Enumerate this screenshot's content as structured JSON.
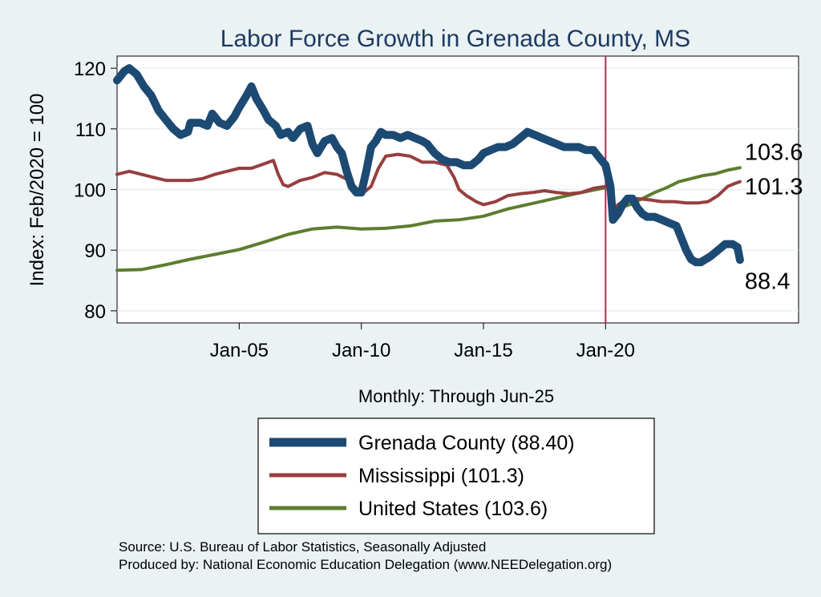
{
  "chart_data": {
    "type": "line",
    "title": "Labor Force Growth in Grenada  County, MS",
    "ylabel": "Index: Feb/2020 = 100",
    "xlabel": "Monthly: Through Jun-25",
    "ylim": [
      78,
      122
    ],
    "yticks": [
      80,
      90,
      100,
      110,
      120
    ],
    "xlim": [
      2000.0,
      2027.9
    ],
    "xticks": [
      {
        "x": 2005.0,
        "label": "Jan-05"
      },
      {
        "x": 2010.0,
        "label": "Jan-10"
      },
      {
        "x": 2015.0,
        "label": "Jan-15"
      },
      {
        "x": 2020.0,
        "label": "Jan-20"
      }
    ],
    "vline": {
      "x": 2020.0,
      "color": "#c0264a"
    },
    "series": [
      {
        "name": "Grenada County",
        "legend": "Grenada  County (88.40)",
        "color": "#1c4a72",
        "width": 10,
        "end_label": "88.4",
        "points": [
          [
            2000.0,
            118
          ],
          [
            2000.3,
            119.5
          ],
          [
            2000.5,
            120
          ],
          [
            2000.8,
            119
          ],
          [
            2001.1,
            117
          ],
          [
            2001.4,
            115.5
          ],
          [
            2001.7,
            113
          ],
          [
            2002.0,
            111.5
          ],
          [
            2002.3,
            110
          ],
          [
            2002.6,
            109
          ],
          [
            2002.9,
            109.5
          ],
          [
            2003.0,
            111
          ],
          [
            2003.4,
            111
          ],
          [
            2003.7,
            110.5
          ],
          [
            2003.9,
            112.5
          ],
          [
            2004.2,
            111
          ],
          [
            2004.5,
            110.5
          ],
          [
            2004.8,
            112
          ],
          [
            2005.0,
            113.5
          ],
          [
            2005.3,
            115.5
          ],
          [
            2005.5,
            117
          ],
          [
            2005.7,
            115
          ],
          [
            2006.0,
            113
          ],
          [
            2006.2,
            111.5
          ],
          [
            2006.5,
            110.5
          ],
          [
            2006.7,
            109
          ],
          [
            2007.0,
            109.5
          ],
          [
            2007.2,
            108.5
          ],
          [
            2007.5,
            110
          ],
          [
            2007.8,
            110.5
          ],
          [
            2008.0,
            107.5
          ],
          [
            2008.2,
            106
          ],
          [
            2008.5,
            108
          ],
          [
            2008.8,
            108.5
          ],
          [
            2009.0,
            107
          ],
          [
            2009.2,
            106
          ],
          [
            2009.4,
            103
          ],
          [
            2009.6,
            100.5
          ],
          [
            2009.8,
            99.5
          ],
          [
            2010.0,
            99.5
          ],
          [
            2010.2,
            103
          ],
          [
            2010.4,
            107
          ],
          [
            2010.6,
            108
          ],
          [
            2010.8,
            109.5
          ],
          [
            2011.0,
            109
          ],
          [
            2011.3,
            109
          ],
          [
            2011.6,
            108.5
          ],
          [
            2011.9,
            109
          ],
          [
            2012.2,
            108.5
          ],
          [
            2012.5,
            108
          ],
          [
            2012.7,
            107.5
          ],
          [
            2013.0,
            106
          ],
          [
            2013.3,
            105
          ],
          [
            2013.6,
            104.5
          ],
          [
            2013.9,
            104.5
          ],
          [
            2014.2,
            104
          ],
          [
            2014.5,
            104
          ],
          [
            2014.8,
            105
          ],
          [
            2015.0,
            106
          ],
          [
            2015.3,
            106.5
          ],
          [
            2015.6,
            107
          ],
          [
            2015.9,
            107
          ],
          [
            2016.2,
            107.5
          ],
          [
            2016.5,
            108.5
          ],
          [
            2016.8,
            109.5
          ],
          [
            2017.1,
            109
          ],
          [
            2017.4,
            108.5
          ],
          [
            2017.7,
            108
          ],
          [
            2018.0,
            107.5
          ],
          [
            2018.3,
            107
          ],
          [
            2018.6,
            107
          ],
          [
            2018.9,
            107
          ],
          [
            2019.2,
            106.5
          ],
          [
            2019.5,
            106.5
          ],
          [
            2019.8,
            105
          ],
          [
            2020.0,
            104
          ],
          [
            2020.2,
            100.5
          ],
          [
            2020.3,
            95
          ],
          [
            2020.5,
            96
          ],
          [
            2020.7,
            97.5
          ],
          [
            2020.9,
            98.5
          ],
          [
            2021.1,
            98.5
          ],
          [
            2021.3,
            97
          ],
          [
            2021.5,
            96
          ],
          [
            2021.7,
            95.5
          ],
          [
            2022.0,
            95.5
          ],
          [
            2022.3,
            95
          ],
          [
            2022.6,
            94.5
          ],
          [
            2022.9,
            94
          ],
          [
            2023.1,
            92
          ],
          [
            2023.3,
            90
          ],
          [
            2023.5,
            88.5
          ],
          [
            2023.7,
            88
          ],
          [
            2023.9,
            88
          ],
          [
            2024.1,
            88.5
          ],
          [
            2024.3,
            89
          ],
          [
            2024.6,
            90
          ],
          [
            2024.9,
            91
          ],
          [
            2025.2,
            91
          ],
          [
            2025.4,
            90.5
          ],
          [
            2025.5,
            88.4
          ]
        ]
      },
      {
        "name": "Mississippi",
        "legend": "Mississippi (101.3)",
        "color": "#963f3f",
        "width": 4,
        "end_label": "101.3",
        "points": [
          [
            2000.0,
            102.5
          ],
          [
            2000.5,
            103
          ],
          [
            2001.0,
            102.5
          ],
          [
            2001.5,
            102
          ],
          [
            2002.0,
            101.5
          ],
          [
            2002.5,
            101.5
          ],
          [
            2003.0,
            101.5
          ],
          [
            2003.5,
            101.8
          ],
          [
            2004.0,
            102.5
          ],
          [
            2004.5,
            103
          ],
          [
            2005.0,
            103.5
          ],
          [
            2005.5,
            103.5
          ],
          [
            2006.0,
            104.2
          ],
          [
            2006.4,
            104.8
          ],
          [
            2006.6,
            102.5
          ],
          [
            2006.8,
            100.8
          ],
          [
            2007.0,
            100.5
          ],
          [
            2007.5,
            101.5
          ],
          [
            2008.0,
            102
          ],
          [
            2008.5,
            102.8
          ],
          [
            2009.0,
            102.5
          ],
          [
            2009.5,
            101.5
          ],
          [
            2009.9,
            99.8
          ],
          [
            2010.1,
            99.5
          ],
          [
            2010.4,
            100.5
          ],
          [
            2010.7,
            103.5
          ],
          [
            2011.0,
            105.5
          ],
          [
            2011.5,
            105.8
          ],
          [
            2012.0,
            105.5
          ],
          [
            2012.5,
            104.5
          ],
          [
            2013.0,
            104.5
          ],
          [
            2013.5,
            104
          ],
          [
            2013.8,
            102
          ],
          [
            2014.0,
            100
          ],
          [
            2014.3,
            99
          ],
          [
            2014.7,
            98
          ],
          [
            2015.0,
            97.5
          ],
          [
            2015.5,
            98
          ],
          [
            2016.0,
            99
          ],
          [
            2016.5,
            99.3
          ],
          [
            2017.0,
            99.5
          ],
          [
            2017.5,
            99.8
          ],
          [
            2018.0,
            99.5
          ],
          [
            2018.5,
            99.3
          ],
          [
            2019.0,
            99.5
          ],
          [
            2019.5,
            100.2
          ],
          [
            2020.0,
            100.5
          ],
          [
            2020.2,
            100
          ],
          [
            2020.3,
            96.5
          ],
          [
            2020.5,
            97.5
          ],
          [
            2020.9,
            98.5
          ],
          [
            2021.3,
            98.5
          ],
          [
            2021.8,
            98.3
          ],
          [
            2022.3,
            98
          ],
          [
            2022.8,
            98
          ],
          [
            2023.3,
            97.8
          ],
          [
            2023.8,
            97.8
          ],
          [
            2024.2,
            98
          ],
          [
            2024.6,
            99
          ],
          [
            2025.0,
            100.5
          ],
          [
            2025.3,
            101
          ],
          [
            2025.5,
            101.3
          ]
        ]
      },
      {
        "name": "United States",
        "legend": "United States (103.6)",
        "color": "#5c7e2f",
        "width": 4,
        "end_label": "103.6",
        "points": [
          [
            2000.0,
            86.7
          ],
          [
            2001.0,
            86.8
          ],
          [
            2002.0,
            87.6
          ],
          [
            2003.0,
            88.5
          ],
          [
            2004.0,
            89.3
          ],
          [
            2005.0,
            90.1
          ],
          [
            2006.0,
            91.3
          ],
          [
            2007.0,
            92.6
          ],
          [
            2008.0,
            93.5
          ],
          [
            2009.0,
            93.8
          ],
          [
            2010.0,
            93.5
          ],
          [
            2011.0,
            93.6
          ],
          [
            2012.0,
            94
          ],
          [
            2013.0,
            94.8
          ],
          [
            2014.0,
            95
          ],
          [
            2015.0,
            95.6
          ],
          [
            2016.0,
            96.8
          ],
          [
            2017.0,
            97.7
          ],
          [
            2018.0,
            98.6
          ],
          [
            2019.0,
            99.5
          ],
          [
            2020.0,
            100.3
          ],
          [
            2020.2,
            100
          ],
          [
            2020.3,
            95.5
          ],
          [
            2020.6,
            97
          ],
          [
            2021.0,
            97.5
          ],
          [
            2021.5,
            98.5
          ],
          [
            2022.0,
            99.5
          ],
          [
            2022.5,
            100.3
          ],
          [
            2023.0,
            101.3
          ],
          [
            2023.5,
            101.8
          ],
          [
            2024.0,
            102.3
          ],
          [
            2024.5,
            102.6
          ],
          [
            2025.0,
            103.2
          ],
          [
            2025.5,
            103.6
          ]
        ]
      }
    ]
  },
  "footer": {
    "source": "Source: U.S. Bureau of Labor Statistics, Seasonally Adjusted",
    "produced": "Produced by: National Economic Education Delegation (www.NEEDelegation.org)"
  }
}
